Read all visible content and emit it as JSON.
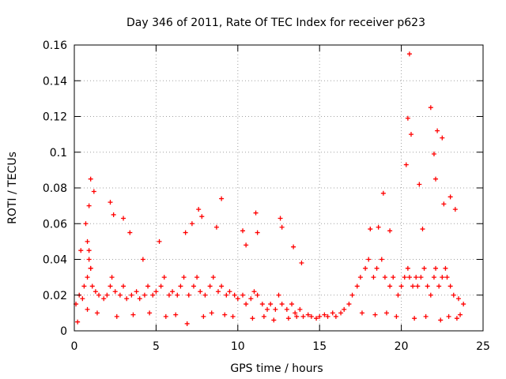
{
  "chart_data": {
    "type": "scatter",
    "title": "Day 346 of 2011, Rate Of TEC Index for receiver p623",
    "xlabel": "GPS time / hours",
    "ylabel": "ROTI / TECUs",
    "xlim": [
      0,
      25
    ],
    "ylim": [
      0,
      0.16
    ],
    "x_ticks": [
      "0",
      "5",
      "10",
      "15",
      "20",
      "25"
    ],
    "y_ticks": [
      "0",
      "0.02",
      "0.04",
      "0.06",
      "0.08",
      "0.1",
      "0.12",
      "0.14",
      "0.16"
    ],
    "grid": true,
    "marker": "plus",
    "color": "#ff0000",
    "series": [
      {
        "x": [
          0.1,
          0.3,
          0.5,
          0.6,
          0.8,
          0.9,
          1.0,
          1.1,
          1.3,
          1.5,
          1.8,
          2.0,
          2.2,
          2.3,
          2.5,
          2.8,
          3.0,
          3.2,
          3.5,
          3.8,
          4.0,
          4.3,
          4.5,
          4.8,
          5.0,
          5.3,
          5.5,
          5.8,
          6.0,
          6.3,
          6.5,
          6.7,
          7.0,
          7.3,
          7.5,
          7.7,
          8.0,
          8.3,
          8.5,
          8.8,
          9.0,
          9.3,
          9.5,
          9.8,
          10.0,
          10.3,
          10.5,
          10.8,
          11.0,
          11.2,
          11.5,
          11.8,
          12.0,
          12.3,
          12.5,
          12.7,
          13.0,
          13.3,
          13.5,
          13.8,
          14.0,
          14.3,
          14.5,
          14.8,
          15.0,
          15.3,
          15.5,
          15.8,
          16.0,
          16.3,
          16.5,
          16.8,
          17.0,
          17.3,
          17.5,
          17.8,
          18.0,
          18.3,
          18.5,
          18.8,
          19.0,
          19.3,
          19.5,
          19.8,
          20.0,
          20.2,
          20.4,
          20.5,
          20.7,
          20.9,
          21.0,
          21.2,
          21.4,
          21.6,
          21.8,
          22.0,
          22.1,
          22.3,
          22.5,
          22.7,
          22.8,
          23.0,
          23.2,
          23.5,
          23.8,
          0.4,
          0.7,
          0.9,
          1.0,
          1.2,
          2.2,
          2.4,
          3.0,
          3.4,
          4.2,
          5.2,
          6.8,
          7.2,
          7.6,
          7.8,
          8.7,
          9.0,
          10.3,
          10.5,
          11.1,
          11.2,
          12.6,
          12.7,
          13.4,
          13.9,
          18.1,
          18.6,
          18.9,
          19.3,
          20.3,
          20.4,
          20.5,
          20.6,
          21.1,
          21.3,
          21.8,
          22.0,
          22.1,
          22.2,
          22.5,
          22.6,
          23.0,
          23.3,
          0.2,
          0.8,
          1.4,
          2.6,
          3.6,
          4.6,
          5.6,
          6.2,
          6.9,
          7.9,
          8.4,
          9.2,
          9.7,
          10.9,
          11.6,
          12.2,
          13.1,
          13.6,
          17.6,
          18.4,
          19.1,
          19.7,
          20.8,
          21.5,
          22.4,
          22.9,
          23.4,
          23.6,
          0.9,
          1.0,
          0.8
        ],
        "y": [
          0.015,
          0.02,
          0.018,
          0.025,
          0.03,
          0.045,
          0.035,
          0.025,
          0.022,
          0.02,
          0.018,
          0.02,
          0.025,
          0.03,
          0.022,
          0.02,
          0.025,
          0.018,
          0.02,
          0.022,
          0.018,
          0.02,
          0.025,
          0.02,
          0.022,
          0.025,
          0.03,
          0.02,
          0.022,
          0.02,
          0.025,
          0.03,
          0.02,
          0.025,
          0.03,
          0.022,
          0.02,
          0.025,
          0.03,
          0.022,
          0.025,
          0.02,
          0.022,
          0.02,
          0.018,
          0.02,
          0.015,
          0.018,
          0.022,
          0.02,
          0.015,
          0.012,
          0.015,
          0.012,
          0.02,
          0.015,
          0.012,
          0.015,
          0.01,
          0.012,
          0.008,
          0.009,
          0.008,
          0.007,
          0.008,
          0.009,
          0.008,
          0.01,
          0.008,
          0.01,
          0.012,
          0.015,
          0.02,
          0.025,
          0.03,
          0.035,
          0.04,
          0.03,
          0.035,
          0.04,
          0.03,
          0.025,
          0.03,
          0.02,
          0.025,
          0.03,
          0.035,
          0.03,
          0.025,
          0.03,
          0.025,
          0.03,
          0.035,
          0.025,
          0.02,
          0.03,
          0.035,
          0.025,
          0.03,
          0.035,
          0.03,
          0.025,
          0.02,
          0.018,
          0.015,
          0.045,
          0.06,
          0.07,
          0.085,
          0.078,
          0.072,
          0.065,
          0.063,
          0.055,
          0.04,
          0.05,
          0.055,
          0.06,
          0.068,
          0.064,
          0.058,
          0.074,
          0.056,
          0.048,
          0.066,
          0.055,
          0.063,
          0.058,
          0.047,
          0.038,
          0.057,
          0.058,
          0.077,
          0.056,
          0.093,
          0.119,
          0.155,
          0.11,
          0.082,
          0.057,
          0.125,
          0.099,
          0.085,
          0.112,
          0.108,
          0.071,
          0.075,
          0.068,
          0.005,
          0.012,
          0.01,
          0.008,
          0.009,
          0.01,
          0.008,
          0.009,
          0.004,
          0.008,
          0.01,
          0.009,
          0.008,
          0.007,
          0.008,
          0.006,
          0.007,
          0.008,
          0.01,
          0.009,
          0.01,
          0.008,
          0.007,
          0.008,
          0.006,
          0.008,
          0.007,
          0.009,
          0.04,
          0.035,
          0.05
        ]
      }
    ]
  }
}
